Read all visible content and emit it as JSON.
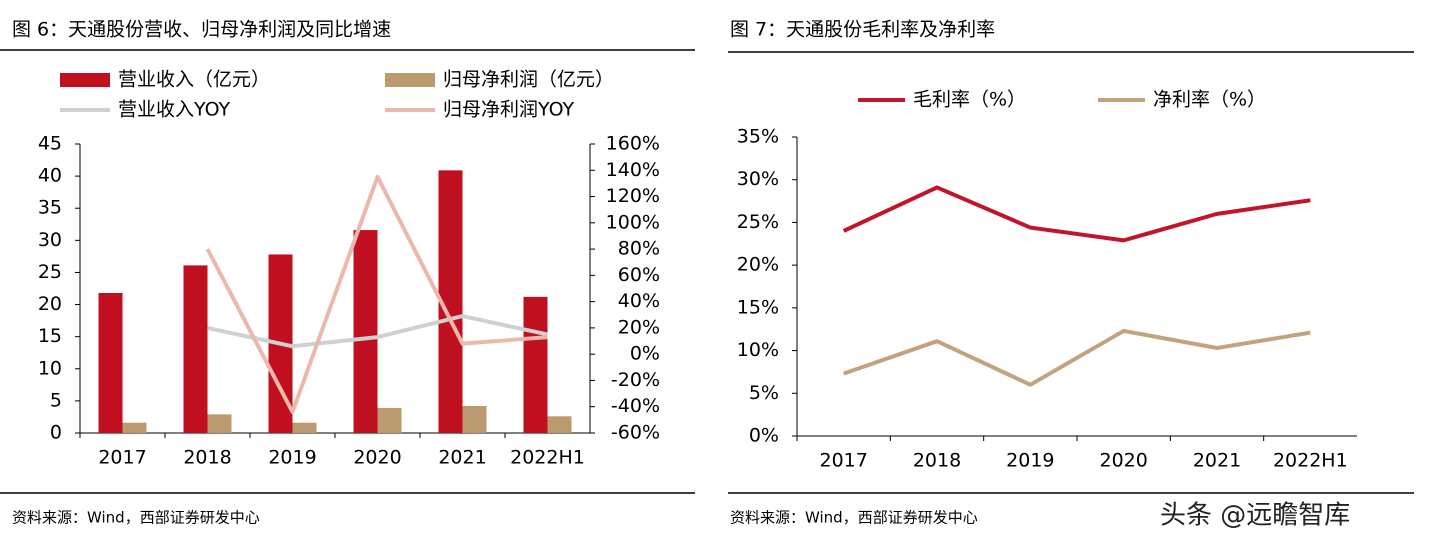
{
  "chart_data": [
    {
      "type": "bar",
      "title": "图 6：天通股份营收、归母净利润及同比增速",
      "source": "资料来源：Wind，西部证券研发中心",
      "categories": [
        "2017",
        "2018",
        "2019",
        "2020",
        "2021",
        "2022H1"
      ],
      "ylim": [
        0,
        45
      ],
      "yticks": [
        0,
        5,
        10,
        15,
        20,
        25,
        30,
        35,
        40,
        45
      ],
      "y2lim": [
        -60,
        160
      ],
      "y2ticks": [
        {
          "value": -60,
          "label": "-60%"
        },
        {
          "value": -40,
          "label": "-40%"
        },
        {
          "value": -20,
          "label": "-20%"
        },
        {
          "value": 0,
          "label": "0%"
        },
        {
          "value": 20,
          "label": "20%"
        },
        {
          "value": 40,
          "label": "40%"
        },
        {
          "value": 60,
          "label": "60%"
        },
        {
          "value": 80,
          "label": "80%"
        },
        {
          "value": 100,
          "label": "100%"
        },
        {
          "value": 120,
          "label": "120%"
        },
        {
          "value": 140,
          "label": "140%"
        },
        {
          "value": 160,
          "label": "160%"
        }
      ],
      "series": [
        {
          "name": "营业收入（亿元）",
          "type": "bar",
          "color": "#c00f1e",
          "values": [
            21.8,
            26.1,
            27.8,
            31.6,
            40.9,
            21.2
          ]
        },
        {
          "name": "归母净利润（亿元）",
          "type": "bar",
          "color": "#bc9a70",
          "values": [
            1.6,
            2.9,
            1.6,
            3.9,
            4.2,
            2.6
          ]
        },
        {
          "name": "营业收入YOY",
          "type": "line",
          "axis": "y2",
          "color": "#d0d0d0",
          "values": [
            null,
            20,
            6,
            13,
            29,
            15
          ]
        },
        {
          "name": "归母净利润YOY",
          "type": "line",
          "axis": "y2",
          "color": "#ecb8ab",
          "values": [
            null,
            80,
            -44,
            135,
            8,
            13
          ]
        }
      ]
    },
    {
      "type": "line",
      "title": "图 7：天通股份毛利率及净利率",
      "source": "资料来源：Wind，西部证券研发中心",
      "categories": [
        "2017",
        "2018",
        "2019",
        "2020",
        "2021",
        "2022H1"
      ],
      "ylim": [
        0,
        35
      ],
      "yticks": [
        {
          "value": 0,
          "label": "0%"
        },
        {
          "value": 5,
          "label": "5%"
        },
        {
          "value": 10,
          "label": "10%"
        },
        {
          "value": 15,
          "label": "15%"
        },
        {
          "value": 20,
          "label": "20%"
        },
        {
          "value": 25,
          "label": "25%"
        },
        {
          "value": 30,
          "label": "30%"
        },
        {
          "value": 35,
          "label": "35%"
        }
      ],
      "series": [
        {
          "name": "毛利率（%）",
          "type": "line",
          "color": "#c2152a",
          "values": [
            24.0,
            29.1,
            24.4,
            22.9,
            26.0,
            27.6
          ]
        },
        {
          "name": "净利率（%）",
          "type": "line",
          "color": "#c4a27d",
          "values": [
            7.3,
            11.1,
            6.0,
            12.3,
            10.3,
            12.1
          ]
        }
      ]
    }
  ],
  "watermark": "头条 @远瞻智库"
}
